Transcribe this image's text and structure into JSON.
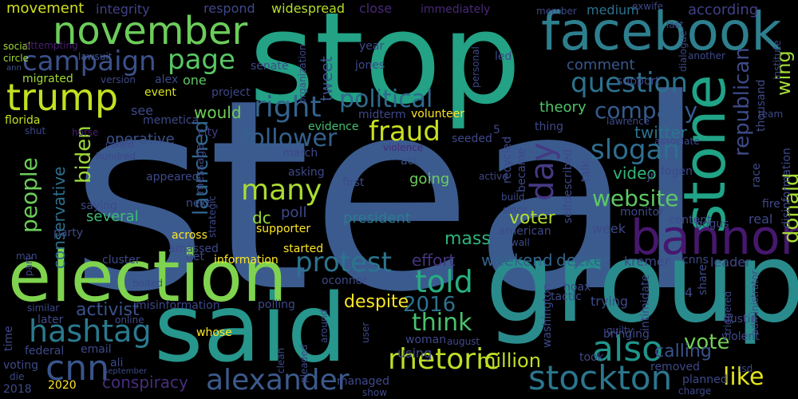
{
  "words": [
    {
      "text": "steal",
      "color": "#3b5b8f"
    },
    {
      "text": "stop",
      "color": "#23a285"
    },
    {
      "text": "said",
      "color": "#27968c"
    },
    {
      "text": "group",
      "color": "#2a8b8c"
    },
    {
      "text": "election",
      "color": "#7fd34e"
    },
    {
      "text": "facebook",
      "color": "#2d7f8e"
    },
    {
      "text": "stone",
      "color": "#20a386"
    },
    {
      "text": "bannon",
      "color": "#46186d"
    },
    {
      "text": "november",
      "color": "#6ccd5a"
    },
    {
      "text": "trump",
      "color": "#c4e021"
    },
    {
      "text": "alexander",
      "color": "#3c5a8c"
    },
    {
      "text": "stockton",
      "color": "#2b768e"
    },
    {
      "text": "rhetoric",
      "color": "#bcdf27"
    },
    {
      "text": "hashtag",
      "color": "#2a7a8e"
    },
    {
      "text": "cnn",
      "color": "#3a558c"
    },
    {
      "text": "also",
      "color": "#1f958b"
    },
    {
      "text": "campaign",
      "color": "#3b508a"
    },
    {
      "text": "question",
      "color": "#2c728e"
    },
    {
      "text": "right",
      "color": "#33638d"
    },
    {
      "text": "protest",
      "color": "#2b748e"
    },
    {
      "text": "political",
      "color": "#2f6b8e"
    },
    {
      "text": "page",
      "color": "#58c765"
    },
    {
      "text": "told",
      "color": "#27ad81"
    },
    {
      "text": "many",
      "color": "#aadc32"
    },
    {
      "text": "fraud",
      "color": "#c8e020"
    },
    {
      "text": "think",
      "color": "#4ac16d"
    },
    {
      "text": "people",
      "color": "#6ccd5a"
    },
    {
      "text": "day",
      "color": "#443983"
    },
    {
      "text": "slogan",
      "color": "#2e6e8e"
    },
    {
      "text": "website",
      "color": "#5dc863"
    },
    {
      "text": "republican",
      "color": "#3e4a89"
    },
    {
      "text": "donald",
      "color": "#a8db34"
    },
    {
      "text": "wing",
      "color": "#a5db36"
    },
    {
      "text": "company",
      "color": "#365c8d"
    },
    {
      "text": "follower",
      "color": "#35608d"
    },
    {
      "text": "like",
      "color": "#e1e31a"
    },
    {
      "text": "vote",
      "color": "#73d056"
    },
    {
      "text": "launched",
      "color": "#31678e"
    },
    {
      "text": "biden",
      "color": "#9dd93b"
    },
    {
      "text": "2016",
      "color": "#2d718e"
    },
    {
      "text": "calling",
      "color": "#3b528b"
    },
    {
      "text": "million",
      "color": "#c0df25"
    },
    {
      "text": "conservative",
      "color": "#2d708e"
    },
    {
      "text": "activist",
      "color": "#3b528b"
    },
    {
      "text": "conspiracy",
      "color": "#472e7c"
    },
    {
      "text": "despite",
      "color": "#fde725"
    },
    {
      "text": "weekend",
      "color": "#33638d"
    },
    {
      "text": "decker",
      "color": "#32658e"
    },
    {
      "text": "twitter",
      "color": "#2c738e"
    },
    {
      "text": "tweet",
      "color": "#3b528b"
    },
    {
      "text": "would",
      "color": "#6ece58"
    },
    {
      "text": "video",
      "color": "#34b679"
    },
    {
      "text": "voter",
      "color": "#b2dd2d"
    },
    {
      "text": "mass",
      "color": "#2fb47c"
    },
    {
      "text": "president",
      "color": "#297b8e"
    },
    {
      "text": "dc",
      "color": "#98d83e"
    },
    {
      "text": "poll",
      "color": "#3e4989"
    },
    {
      "text": "going",
      "color": "#6ccd5a"
    },
    {
      "text": "effort",
      "color": "#46337f"
    },
    {
      "text": "several",
      "color": "#3dbc74"
    },
    {
      "text": "operative",
      "color": "#3b528b"
    },
    {
      "text": "movement",
      "color": "#d0e11c"
    },
    {
      "text": "integrity",
      "color": "#414287"
    },
    {
      "text": "respond",
      "color": "#3e4989"
    },
    {
      "text": "widespread",
      "color": "#b5de2b"
    },
    {
      "text": "close",
      "color": "#482878"
    },
    {
      "text": "immediately",
      "color": "#482878"
    },
    {
      "text": "according",
      "color": "#424086"
    },
    {
      "text": "medium",
      "color": "#2c738e"
    },
    {
      "text": "theory",
      "color": "#50c46a"
    },
    {
      "text": "thousand",
      "color": "#3e4a89"
    },
    {
      "text": "comment",
      "color": "#38588c"
    },
    {
      "text": "support",
      "color": "#3e4989"
    },
    {
      "text": "one",
      "color": "#5ec962"
    },
    {
      "text": "see",
      "color": "#3e4989"
    },
    {
      "text": "event",
      "color": "#d8e219"
    },
    {
      "text": "project",
      "color": "#3f4788"
    },
    {
      "text": "year",
      "color": "#3e4989"
    },
    {
      "text": "jones",
      "color": "#3e4989"
    },
    {
      "text": "led",
      "color": "#3e4989"
    },
    {
      "text": "senate",
      "color": "#3e4989"
    },
    {
      "text": "alex",
      "color": "#3e4989"
    },
    {
      "text": "version",
      "color": "#3e4989"
    },
    {
      "text": "migrated",
      "color": "#a2da37"
    },
    {
      "text": "social",
      "color": "#a2da37"
    },
    {
      "text": "circle",
      "color": "#a2da37"
    },
    {
      "text": "attempting",
      "color": "#481f70"
    },
    {
      "text": "lawsuit",
      "color": "#3b528b"
    },
    {
      "text": "ann",
      "color": "#3b528b"
    },
    {
      "text": "florida",
      "color": "#c5e021"
    },
    {
      "text": "memetica",
      "color": "#3e4989"
    },
    {
      "text": "shut",
      "color": "#3e4989"
    },
    {
      "text": "horse",
      "color": "#481f70"
    },
    {
      "text": "city",
      "color": "#433e85"
    },
    {
      "text": "evidence",
      "color": "#43bf71"
    },
    {
      "text": "midterm",
      "color": "#3e4989"
    },
    {
      "text": "volunteer",
      "color": "#fde725"
    },
    {
      "text": "act",
      "color": "#3b528b"
    },
    {
      "text": "seeded",
      "color": "#3e4989"
    },
    {
      "text": "thing",
      "color": "#3e4989"
    },
    {
      "text": "5",
      "color": "#3e4989"
    },
    {
      "text": "violence",
      "color": "#482878"
    },
    {
      "text": "march",
      "color": "#3e4989"
    },
    {
      "text": "asking",
      "color": "#3e4989"
    },
    {
      "text": "first",
      "color": "#3e4989"
    },
    {
      "text": "appeared",
      "color": "#3e4989"
    },
    {
      "text": "message",
      "color": "#3e4989"
    },
    {
      "text": "next",
      "color": "#3e4989"
    },
    {
      "text": "strategic",
      "color": "#3e4989"
    },
    {
      "text": "saying",
      "color": "#3e4989"
    },
    {
      "text": "party",
      "color": "#3e4989"
    },
    {
      "text": "across",
      "color": "#fde725"
    },
    {
      "text": "amassed",
      "color": "#3e4989"
    },
    {
      "text": "supporter",
      "color": "#fde725"
    },
    {
      "text": "started",
      "color": "#fde725"
    },
    {
      "text": "get",
      "color": "#3e4989"
    },
    {
      "text": "information",
      "color": "#fde725"
    },
    {
      "text": "oconnor",
      "color": "#3e4989"
    },
    {
      "text": "cluster",
      "color": "#3e4989"
    },
    {
      "text": "misinformation",
      "color": "#3e4989"
    },
    {
      "text": "polling",
      "color": "#3e4989"
    },
    {
      "text": "whose",
      "color": "#fde725"
    },
    {
      "text": "later",
      "color": "#3e4989"
    },
    {
      "text": "online",
      "color": "#3e4989"
    },
    {
      "text": "bolted",
      "color": "#3e4989"
    },
    {
      "text": "similar",
      "color": "#3e4989"
    },
    {
      "text": "time",
      "color": "#3e4989"
    },
    {
      "text": "federal",
      "color": "#3e4989"
    },
    {
      "text": "email",
      "color": "#3e4989"
    },
    {
      "text": "ali",
      "color": "#3e4989"
    },
    {
      "text": "voting",
      "color": "#3e4989"
    },
    {
      "text": "die",
      "color": "#3e4989"
    },
    {
      "text": "2018",
      "color": "#3e4989"
    },
    {
      "text": "2020",
      "color": "#fde725"
    },
    {
      "text": "september",
      "color": "#3e4989"
    },
    {
      "text": "man",
      "color": "#3e4989"
    },
    {
      "text": "part",
      "color": "#3e4989"
    },
    {
      "text": "clean",
      "color": "#3e4989"
    },
    {
      "text": "around",
      "color": "#3e4989"
    },
    {
      "text": "pleaded",
      "color": "#3e4989"
    },
    {
      "text": "managed",
      "color": "#3e4989"
    },
    {
      "text": "woman",
      "color": "#3e4989"
    },
    {
      "text": "august",
      "color": "#3e4989"
    },
    {
      "text": "user",
      "color": "#3e4989"
    },
    {
      "text": "show",
      "color": "#3e4989"
    },
    {
      "text": "using",
      "color": "#3e4989"
    },
    {
      "text": "washington",
      "color": "#3e4989"
    },
    {
      "text": "tactic",
      "color": "#3e4989"
    },
    {
      "text": "took",
      "color": "#3e4989"
    },
    {
      "text": "guilty",
      "color": "#3e4989"
    },
    {
      "text": "bringing",
      "color": "#3e4989"
    },
    {
      "text": "trying",
      "color": "#3e4989"
    },
    {
      "text": "hoax",
      "color": "#3e4989"
    },
    {
      "text": "kremer",
      "color": "#3e4989"
    },
    {
      "text": "cnns",
      "color": "#3e4989"
    },
    {
      "text": "leader",
      "color": "#3e4989"
    },
    {
      "text": "4",
      "color": "#3e4989"
    },
    {
      "text": "share",
      "color": "#3e4989"
    },
    {
      "text": "triggered",
      "color": "#3e4989"
    },
    {
      "text": "administrator",
      "color": "#3e4989"
    },
    {
      "text": "intimidate",
      "color": "#3e4989"
    },
    {
      "text": "dustin",
      "color": "#3e4989"
    },
    {
      "text": "violent",
      "color": "#3e4989"
    },
    {
      "text": "removed",
      "color": "#3e4989"
    },
    {
      "text": "planned",
      "color": "#3e4989"
    },
    {
      "text": "charge",
      "color": "#3e4989"
    },
    {
      "text": "isd",
      "color": "#3e4989"
    },
    {
      "text": "american",
      "color": "#3e4989"
    },
    {
      "text": "wall",
      "color": "#3e4989"
    },
    {
      "text": "build",
      "color": "#3e4989"
    },
    {
      "text": "since",
      "color": "#3e4989"
    },
    {
      "text": "became",
      "color": "#3e4989"
    },
    {
      "text": "selfdescribed",
      "color": "#3e4989"
    },
    {
      "text": "recycled",
      "color": "#3e4989"
    },
    {
      "text": "active",
      "color": "#3e4989"
    },
    {
      "text": "talk",
      "color": "#3e4989"
    },
    {
      "text": "jr",
      "color": "#3e4989"
    },
    {
      "text": "fogen",
      "color": "#3e4989"
    },
    {
      "text": "monitor",
      "color": "#3e4989"
    },
    {
      "text": "week",
      "color": "#3e4989"
    },
    {
      "text": "content",
      "color": "#3e4989"
    },
    {
      "text": "bogus",
      "color": "#3e4989"
    },
    {
      "text": "real",
      "color": "#3e4989"
    },
    {
      "text": "fire",
      "color": "#3e4989"
    },
    {
      "text": "race",
      "color": "#3e4989"
    },
    {
      "text": "disinformation",
      "color": "#3e4989"
    },
    {
      "text": "team",
      "color": "#3e4989"
    },
    {
      "text": "lawrence",
      "color": "#3e4989"
    },
    {
      "text": "associate",
      "color": "#3e4989"
    },
    {
      "text": "called",
      "color": "#3e4989"
    },
    {
      "text": "hundred",
      "color": "#3e4989"
    },
    {
      "text": "another",
      "color": "#3e4989"
    },
    {
      "text": "dialogue",
      "color": "#3e4989"
    },
    {
      "text": "institute",
      "color": "#3e4989"
    },
    {
      "text": "exwife",
      "color": "#3e4989"
    },
    {
      "text": "last",
      "color": "#3e4989"
    },
    {
      "text": "member",
      "color": "#3e4989"
    },
    {
      "text": "organization",
      "color": "#3e4989"
    },
    {
      "text": "personal",
      "color": "#3e4989"
    }
  ]
}
